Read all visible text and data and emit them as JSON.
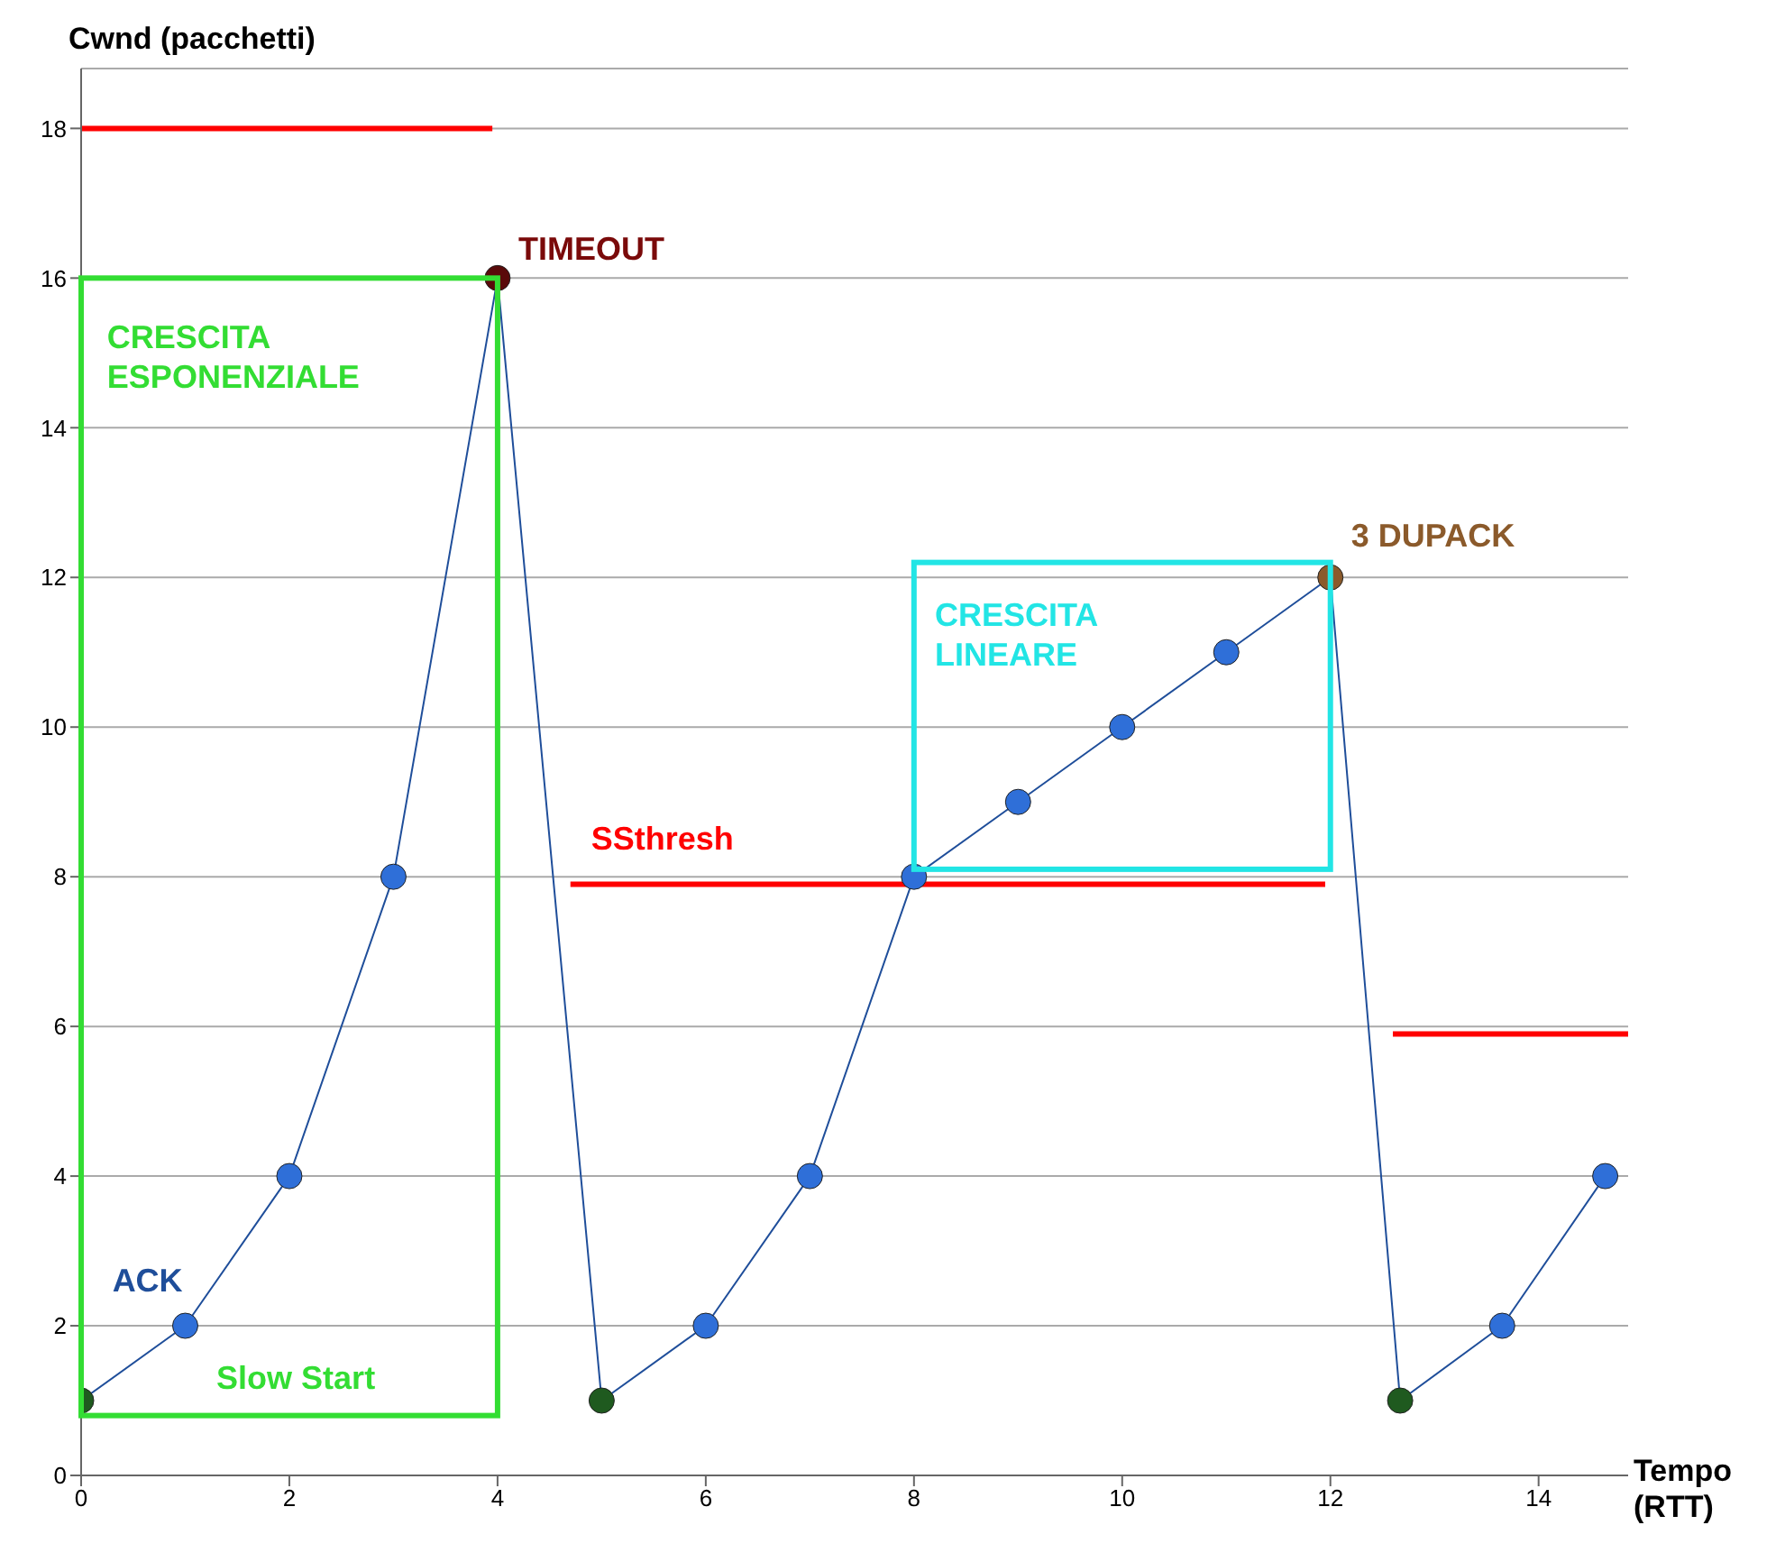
{
  "chart_data": {
    "type": "line",
    "xlabel": "Tempo (RTT)",
    "ylabel": "Cwnd (pacchetti)",
    "xlim": [
      0,
      14.86
    ],
    "xticks": [
      0,
      2,
      4,
      6,
      8,
      10,
      12,
      14
    ],
    "ylim": [
      0,
      18.8
    ],
    "yticks": [
      0,
      2,
      4,
      6,
      8,
      10,
      12,
      14,
      16,
      18
    ],
    "grid": "y",
    "marker": "circle",
    "series": [
      {
        "color": "#1f4e9a",
        "x": [
          0,
          1,
          2,
          3,
          4,
          5,
          6,
          7,
          8,
          9,
          10,
          11,
          12,
          12.67,
          13.65,
          14.64
        ],
        "values": [
          1,
          2,
          4,
          8,
          16,
          1,
          2,
          4,
          8,
          9,
          10,
          11,
          12,
          1,
          2,
          4
        ],
        "colors": [
          "#1f5a1f",
          "#2f6fd8",
          "#2f6fd8",
          "#2f6fd8",
          "#5a0a0a",
          "#1f5a1f",
          "#2f6fd8",
          "#2f6fd8",
          "#2f6fd8",
          "#2f6fd8",
          "#2f6fd8",
          "#2f6fd8",
          "#8b5a2b",
          "#1f5a1f",
          "#2f6fd8",
          "#2f6fd8"
        ]
      },
      {
        "color": "#ff0000",
        "marker": "none",
        "x": [
          0,
          3.95
        ],
        "values": [
          18,
          18
        ]
      },
      {
        "color": "#ff0000",
        "marker": "none",
        "x": [
          4.7,
          11.95
        ],
        "values": [
          7.9,
          7.9
        ]
      },
      {
        "color": "#ff0000",
        "marker": "none",
        "x": [
          12.6,
          14.86
        ],
        "values": [
          5.9,
          5.9
        ]
      }
    ],
    "annotations": [
      "TIMEOUT",
      "CRESCITA ESPONENZIALE",
      "ACK",
      "Slow Start",
      "SSthresh",
      "CRESCITA LINEARE",
      "3 DUPACK"
    ]
  }
}
